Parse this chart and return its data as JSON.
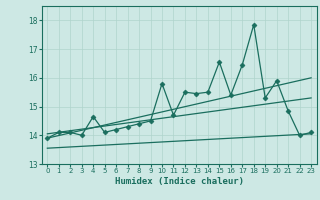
{
  "xlabel": "Humidex (Indice chaleur)",
  "bg_color": "#cde8e4",
  "grid_color": "#b0d4cc",
  "line_color": "#1a6e5e",
  "xlim": [
    -0.5,
    23.5
  ],
  "ylim": [
    13.0,
    18.5
  ],
  "yticks": [
    13,
    14,
    15,
    16,
    17,
    18
  ],
  "xticks": [
    0,
    1,
    2,
    3,
    4,
    5,
    6,
    7,
    8,
    9,
    10,
    11,
    12,
    13,
    14,
    15,
    16,
    17,
    18,
    19,
    20,
    21,
    22,
    23
  ],
  "main_x": [
    0,
    1,
    2,
    3,
    4,
    5,
    6,
    7,
    8,
    9,
    10,
    11,
    12,
    13,
    14,
    15,
    16,
    17,
    18,
    19,
    20,
    21,
    22,
    23
  ],
  "main_y": [
    13.9,
    14.1,
    14.1,
    14.0,
    14.65,
    14.1,
    14.2,
    14.3,
    14.4,
    14.5,
    15.8,
    14.7,
    15.5,
    15.45,
    15.5,
    16.55,
    15.4,
    16.45,
    17.85,
    15.3,
    15.9,
    14.85,
    14.0,
    14.1
  ],
  "trend1_x": [
    0,
    23
  ],
  "trend1_y": [
    13.9,
    16.0
  ],
  "trend2_x": [
    0,
    23
  ],
  "trend2_y": [
    14.05,
    15.3
  ],
  "trend3_x": [
    0,
    23
  ],
  "trend3_y": [
    13.55,
    14.05
  ]
}
